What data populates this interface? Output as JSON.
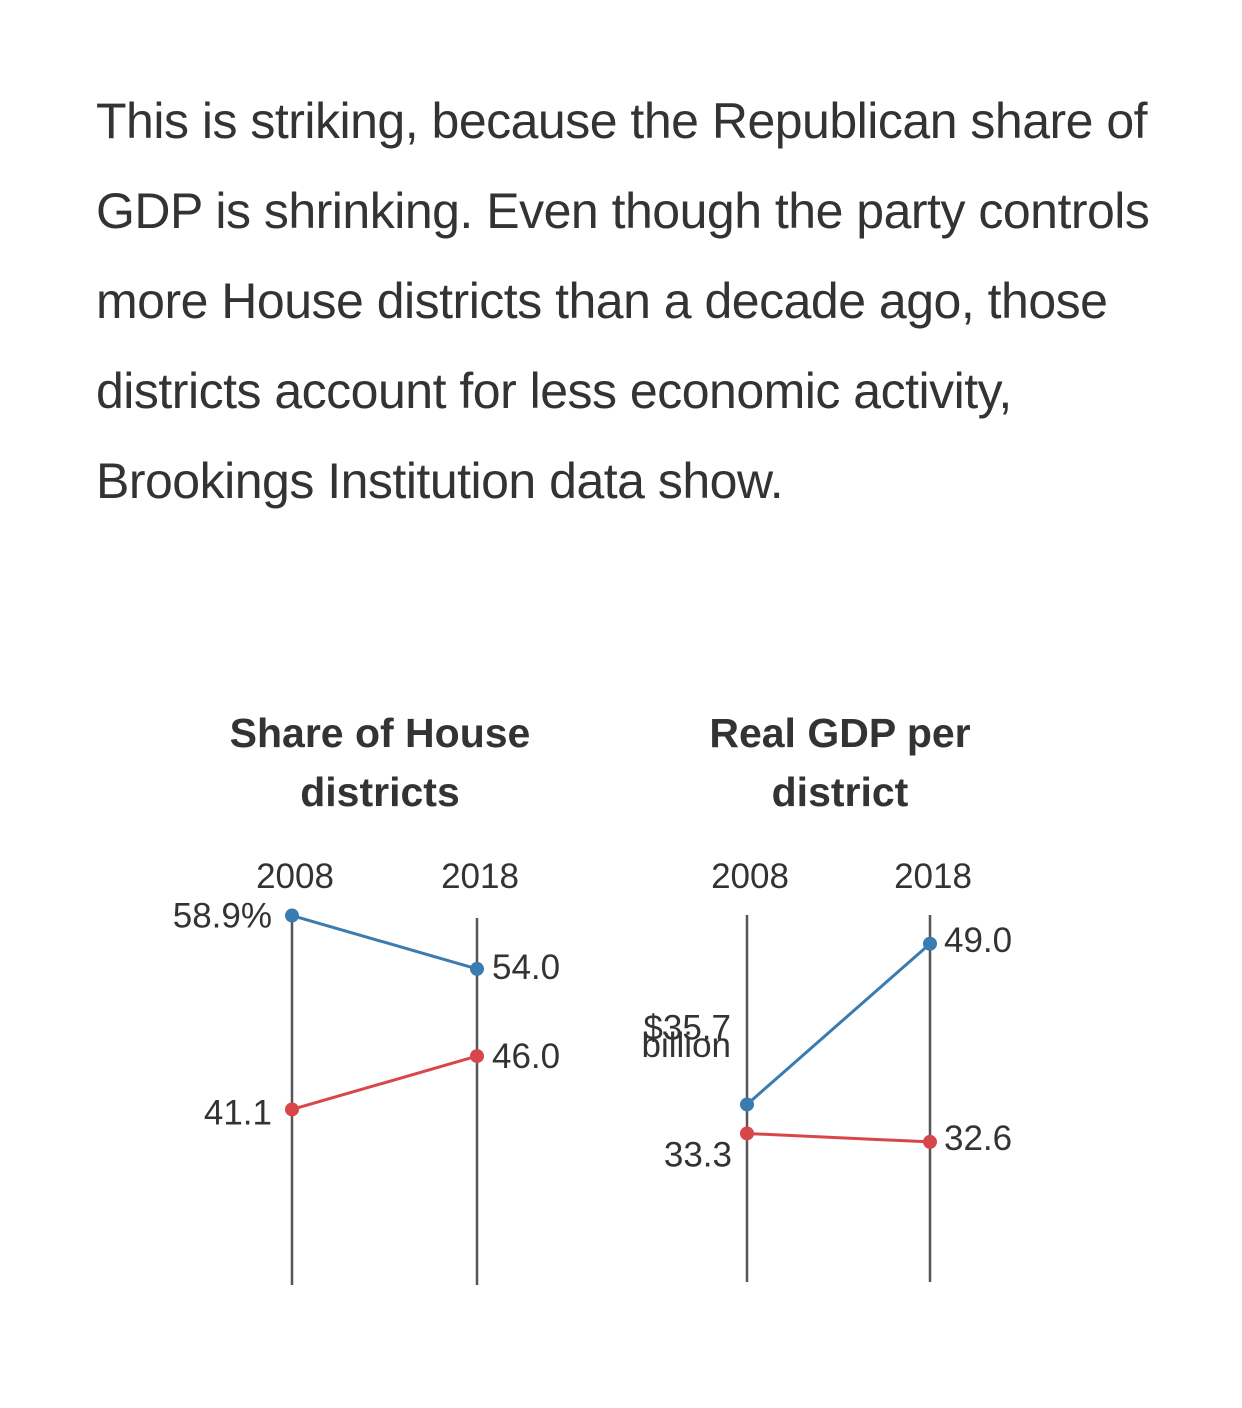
{
  "article": {
    "paragraph": "This is striking, because the Republican share of GDP is shrinking. Even though the party controls more House districts than a decade ago, those districts account for less economic activity, Brookings Institution data show."
  },
  "colors": {
    "blue": "#3a7bb0",
    "red": "#d9464a",
    "axis": "#555555",
    "text": "#333333"
  },
  "chart_data": [
    {
      "type": "line",
      "title": "Share of House districts",
      "title_lines": [
        "Share of House",
        "districts"
      ],
      "categories": [
        "2008",
        "2018"
      ],
      "ylim": [
        36,
        64
      ],
      "series": [
        {
          "name": "blue",
          "color": "#3a7bb0",
          "values": [
            58.9,
            54.0
          ],
          "labels": [
            "58.9%",
            "54.0"
          ]
        },
        {
          "name": "red",
          "color": "#d9464a",
          "values": [
            41.1,
            46.0
          ],
          "labels": [
            "41.1",
            "46.0"
          ]
        }
      ]
    },
    {
      "type": "line",
      "title": "Real GDP per district",
      "title_lines": [
        "Real GDP per",
        "district"
      ],
      "categories": [
        "2008",
        "2018"
      ],
      "ylim": [
        22,
        58
      ],
      "unit_label": "billion",
      "series": [
        {
          "name": "blue",
          "color": "#3a7bb0",
          "values": [
            35.7,
            49.0
          ],
          "labels": [
            "$35.7",
            "49.0"
          ]
        },
        {
          "name": "red",
          "color": "#d9464a",
          "values": [
            33.3,
            32.6
          ],
          "labels": [
            "33.3",
            "32.6"
          ]
        }
      ]
    }
  ]
}
